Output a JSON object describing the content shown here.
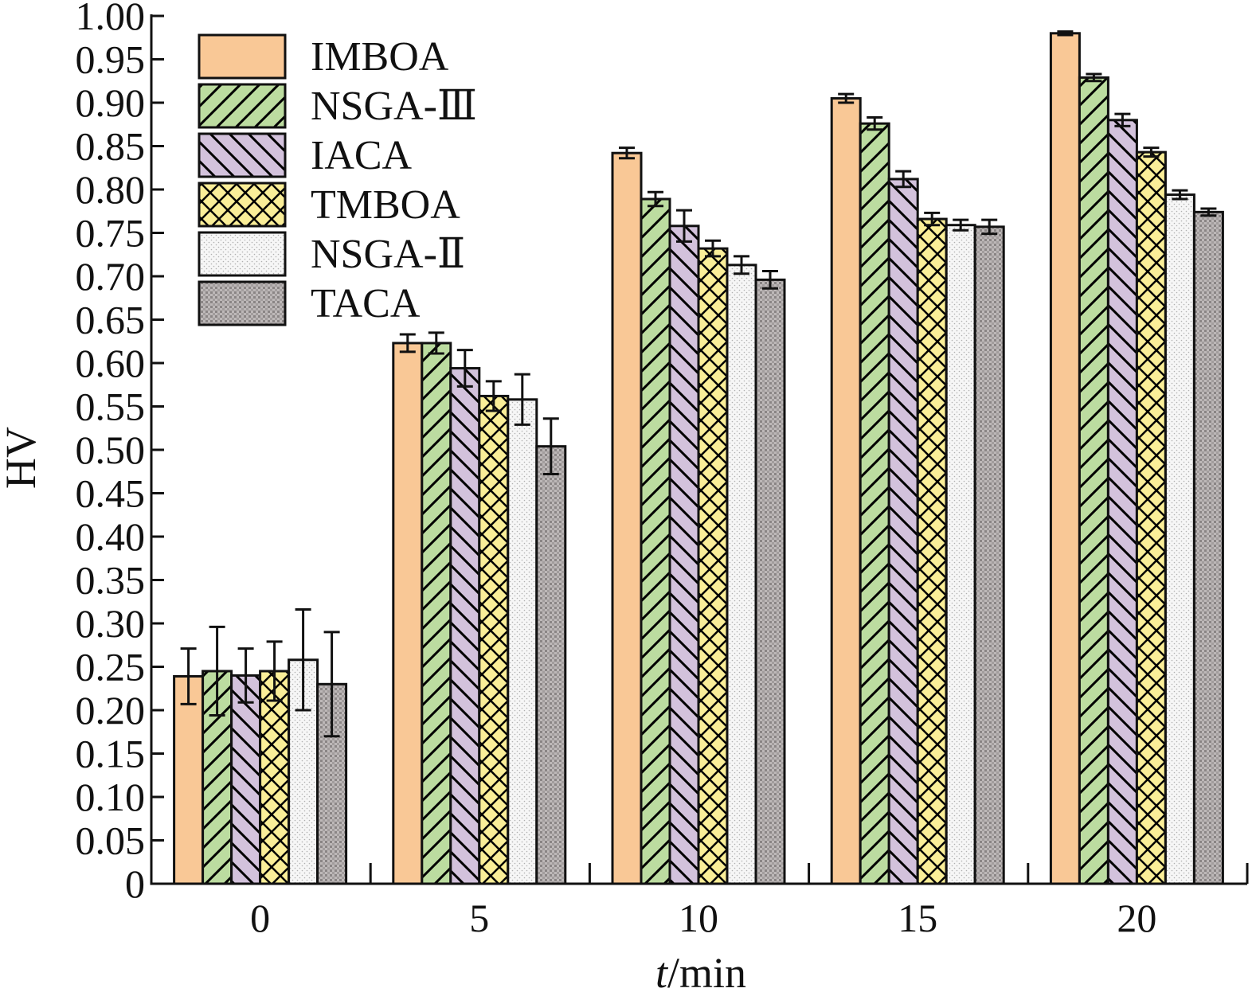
{
  "chart_data": {
    "type": "bar",
    "xlabel_italic": "t",
    "xlabel_rest": "/min",
    "ylabel": "HV",
    "categories": [
      "0",
      "5",
      "10",
      "15",
      "20"
    ],
    "ylim": [
      0,
      1.0
    ],
    "yticks": [
      "0",
      "0.05",
      "0.10",
      "0.15",
      "0.20",
      "0.25",
      "0.30",
      "0.35",
      "0.40",
      "0.45",
      "0.50",
      "0.55",
      "0.60",
      "0.65",
      "0.70",
      "0.75",
      "0.80",
      "0.85",
      "0.90",
      "0.95",
      "1.00"
    ],
    "error_bars": true,
    "legend_position": "top-left",
    "series": [
      {
        "name": "IMBOA",
        "fill": "#f9c896",
        "pattern": "solid",
        "values": [
          0.239,
          0.623,
          0.842,
          0.905,
          0.98
        ],
        "errors": [
          0.032,
          0.01,
          0.006,
          0.005,
          0.002
        ]
      },
      {
        "name": "NSGA-Ⅲ",
        "fill": "#bcdca0",
        "pattern": "diag-fwd",
        "values": [
          0.245,
          0.623,
          0.789,
          0.876,
          0.929
        ],
        "errors": [
          0.051,
          0.012,
          0.008,
          0.007,
          0.004
        ]
      },
      {
        "name": "IACA",
        "fill": "#d3c2dc",
        "pattern": "diag-back",
        "values": [
          0.24,
          0.594,
          0.758,
          0.812,
          0.88
        ],
        "errors": [
          0.031,
          0.021,
          0.018,
          0.009,
          0.007
        ]
      },
      {
        "name": "TMBOA",
        "fill": "#faee98",
        "pattern": "crosshatch",
        "values": [
          0.245,
          0.562,
          0.732,
          0.766,
          0.843
        ],
        "errors": [
          0.034,
          0.017,
          0.009,
          0.007,
          0.005
        ]
      },
      {
        "name": "NSGA-Ⅱ",
        "fill": "#f6f6f6",
        "pattern": "dots",
        "values": [
          0.258,
          0.558,
          0.713,
          0.759,
          0.794
        ],
        "errors": [
          0.058,
          0.029,
          0.01,
          0.006,
          0.005
        ]
      },
      {
        "name": "TACA",
        "fill": "#bdb8b8",
        "pattern": "grid",
        "values": [
          0.23,
          0.504,
          0.696,
          0.757,
          0.774
        ],
        "errors": [
          0.06,
          0.032,
          0.01,
          0.008,
          0.004
        ]
      }
    ]
  }
}
